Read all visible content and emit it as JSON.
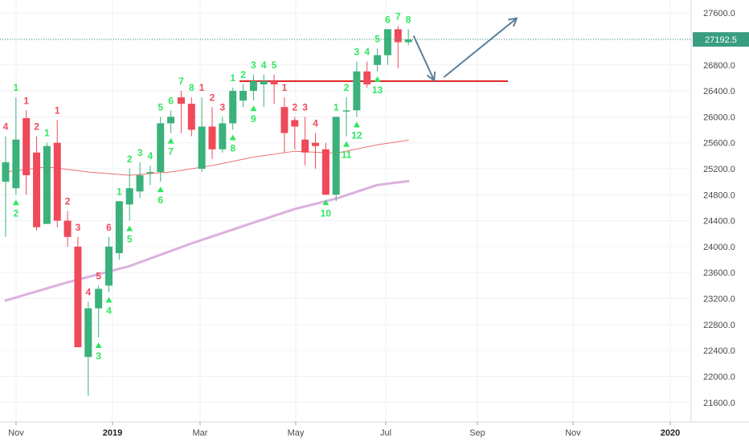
{
  "chart_data": {
    "type": "candlestick",
    "interval": "weekly",
    "title": "",
    "ylim": [
      21300,
      27800
    ],
    "y_ticks": [
      21600,
      22000,
      22400,
      22800,
      23200,
      23600,
      24000,
      24400,
      24800,
      25200,
      25600,
      26000,
      26400,
      26800,
      27200,
      27600
    ],
    "x_ticks": [
      {
        "label": "Nov",
        "bold": false
      },
      {
        "label": "2019",
        "bold": true
      },
      {
        "label": "Mar",
        "bold": false
      },
      {
        "label": "May",
        "bold": false
      },
      {
        "label": "Jul",
        "bold": false
      },
      {
        "label": "Sep",
        "bold": false
      },
      {
        "label": "Nov",
        "bold": false
      },
      {
        "label": "2020",
        "bold": true
      }
    ],
    "last_price": "27192.5",
    "candles": [
      {
        "o": 25000,
        "h": 25700,
        "l": 24150,
        "c": 25300
      },
      {
        "o": 24900,
        "h": 26300,
        "l": 24800,
        "c": 25650
      },
      {
        "o": 25980,
        "h": 26100,
        "l": 24800,
        "c": 25100
      },
      {
        "o": 25450,
        "h": 25700,
        "l": 24250,
        "c": 24300
      },
      {
        "o": 24350,
        "h": 25600,
        "l": 24350,
        "c": 25550
      },
      {
        "o": 25600,
        "h": 25950,
        "l": 24300,
        "c": 24400
      },
      {
        "o": 24400,
        "h": 24550,
        "l": 24000,
        "c": 24150
      },
      {
        "o": 24000,
        "h": 24150,
        "l": 22450,
        "c": 22450
      },
      {
        "o": 22300,
        "h": 23150,
        "l": 21700,
        "c": 23050
      },
      {
        "o": 23050,
        "h": 23400,
        "l": 22600,
        "c": 23350
      },
      {
        "o": 23400,
        "h": 24150,
        "l": 23300,
        "c": 24000
      },
      {
        "o": 23900,
        "h": 24700,
        "l": 23800,
        "c": 24700
      },
      {
        "o": 24650,
        "h": 25200,
        "l": 24400,
        "c": 24900
      },
      {
        "o": 24850,
        "h": 25300,
        "l": 24750,
        "c": 25100
      },
      {
        "o": 25130,
        "h": 25250,
        "l": 24950,
        "c": 25150
      },
      {
        "o": 25150,
        "h": 26000,
        "l": 25000,
        "c": 25900
      },
      {
        "o": 25900,
        "h": 26100,
        "l": 25750,
        "c": 26000
      },
      {
        "o": 26300,
        "h": 26400,
        "l": 25750,
        "c": 26200
      },
      {
        "o": 26200,
        "h": 26300,
        "l": 25700,
        "c": 25800
      },
      {
        "o": 25200,
        "h": 26300,
        "l": 25150,
        "c": 25850
      },
      {
        "o": 25850,
        "h": 26150,
        "l": 25350,
        "c": 25500
      },
      {
        "o": 25500,
        "h": 26000,
        "l": 25450,
        "c": 25900
      },
      {
        "o": 25900,
        "h": 26450,
        "l": 25800,
        "c": 26400
      },
      {
        "o": 26250,
        "h": 26500,
        "l": 26150,
        "c": 26400
      },
      {
        "o": 26400,
        "h": 26650,
        "l": 26250,
        "c": 26550
      },
      {
        "o": 26500,
        "h": 26650,
        "l": 26150,
        "c": 26550
      },
      {
        "o": 26550,
        "h": 26650,
        "l": 26200,
        "c": 26500
      },
      {
        "o": 26150,
        "h": 26300,
        "l": 25450,
        "c": 25750
      },
      {
        "o": 25950,
        "h": 26000,
        "l": 25500,
        "c": 25850
      },
      {
        "o": 25650,
        "h": 26000,
        "l": 25250,
        "c": 25450
      },
      {
        "o": 25600,
        "h": 25750,
        "l": 25200,
        "c": 25550
      },
      {
        "o": 25500,
        "h": 25600,
        "l": 24800,
        "c": 24800
      },
      {
        "o": 24800,
        "h": 26000,
        "l": 24700,
        "c": 26000
      },
      {
        "o": 26100,
        "h": 26300,
        "l": 25700,
        "c": 26100
      },
      {
        "o": 26100,
        "h": 26850,
        "l": 26000,
        "c": 26700
      },
      {
        "o": 26700,
        "h": 26850,
        "l": 26450,
        "c": 26500
      },
      {
        "o": 26800,
        "h": 27050,
        "l": 26700,
        "c": 26950
      },
      {
        "o": 26950,
        "h": 27350,
        "l": 26800,
        "c": 27350
      },
      {
        "o": 27350,
        "h": 27400,
        "l": 26750,
        "c": 27150
      },
      {
        "o": 27150,
        "h": 27350,
        "l": 27100,
        "c": 27192
      }
    ],
    "series": [
      {
        "kind": "ma",
        "points": [
          [
            0,
            25150
          ],
          [
            4,
            25230
          ],
          [
            8,
            25150
          ],
          [
            12,
            25100
          ],
          [
            16,
            25150
          ],
          [
            20,
            25250
          ],
          [
            24,
            25380
          ],
          [
            28,
            25470
          ],
          [
            32,
            25440
          ],
          [
            36,
            25570
          ],
          [
            39,
            25640
          ]
        ]
      },
      {
        "kind": "ma",
        "points": [
          [
            0,
            23170
          ],
          [
            6,
            23450
          ],
          [
            12,
            23700
          ],
          [
            18,
            24050
          ],
          [
            24,
            24370
          ],
          [
            28,
            24580
          ],
          [
            32,
            24740
          ],
          [
            36,
            24950
          ],
          [
            39,
            25010
          ]
        ]
      }
    ],
    "count_labels": [
      {
        "text": "4",
        "i": 0,
        "pos": "above",
        "color": "red"
      },
      {
        "text": "2",
        "i": 1,
        "pos": "below",
        "color": "green"
      },
      {
        "text": "1",
        "i": 1,
        "pos": "above",
        "color": "green"
      },
      {
        "text": "1",
        "i": 2,
        "pos": "above",
        "color": "red"
      },
      {
        "text": "2",
        "i": 3,
        "pos": "above",
        "color": "red"
      },
      {
        "text": "1",
        "i": 4,
        "pos": "above",
        "color": "green"
      },
      {
        "text": "1",
        "i": 5,
        "pos": "above",
        "color": "red"
      },
      {
        "text": "2",
        "i": 6,
        "pos": "above",
        "color": "red"
      },
      {
        "text": "3",
        "i": 7,
        "pos": "above",
        "color": "red"
      },
      {
        "text": "4",
        "i": 8,
        "pos": "above",
        "color": "red"
      },
      {
        "text": "3",
        "i": 9,
        "pos": "below",
        "color": "green"
      },
      {
        "text": "5",
        "i": 9,
        "pos": "above",
        "color": "red"
      },
      {
        "text": "4",
        "i": 10,
        "pos": "below",
        "color": "green"
      },
      {
        "text": "6",
        "i": 10,
        "pos": "above",
        "color": "red"
      },
      {
        "text": "1",
        "i": 11,
        "pos": "above",
        "color": "green"
      },
      {
        "text": "2",
        "i": 12,
        "pos": "above",
        "color": "green"
      },
      {
        "text": "5",
        "i": 12,
        "pos": "below",
        "color": "green"
      },
      {
        "text": "3",
        "i": 13,
        "pos": "above",
        "color": "green"
      },
      {
        "text": "4",
        "i": 14,
        "pos": "above",
        "color": "green"
      },
      {
        "text": "6",
        "i": 15,
        "pos": "below",
        "color": "green"
      },
      {
        "text": "5",
        "i": 15,
        "pos": "above",
        "color": "green"
      },
      {
        "text": "6",
        "i": 16,
        "pos": "above",
        "color": "green"
      },
      {
        "text": "7",
        "i": 16,
        "pos": "below",
        "color": "green"
      },
      {
        "text": "7",
        "i": 17,
        "pos": "above",
        "color": "green"
      },
      {
        "text": "8",
        "i": 18,
        "pos": "above",
        "color": "green"
      },
      {
        "text": "1",
        "i": 19,
        "pos": "above",
        "color": "red"
      },
      {
        "text": "2",
        "i": 20,
        "pos": "above",
        "color": "red"
      },
      {
        "text": "3",
        "i": 21,
        "pos": "above",
        "color": "red"
      },
      {
        "text": "8",
        "i": 22,
        "pos": "below",
        "color": "green"
      },
      {
        "text": "1",
        "i": 22,
        "pos": "above",
        "color": "green"
      },
      {
        "text": "2",
        "i": 23,
        "pos": "above",
        "color": "green"
      },
      {
        "text": "9",
        "i": 24,
        "pos": "below",
        "color": "green"
      },
      {
        "text": "3",
        "i": 24,
        "pos": "above",
        "color": "green"
      },
      {
        "text": "4",
        "i": 25,
        "pos": "above",
        "color": "green"
      },
      {
        "text": "5",
        "i": 26,
        "pos": "above",
        "color": "green"
      },
      {
        "text": "1",
        "i": 27,
        "pos": "above",
        "color": "red"
      },
      {
        "text": "2",
        "i": 28,
        "pos": "above",
        "color": "red"
      },
      {
        "text": "3",
        "i": 29,
        "pos": "above",
        "color": "red"
      },
      {
        "text": "4",
        "i": 30,
        "pos": "above",
        "color": "red"
      },
      {
        "text": "10",
        "i": 31,
        "pos": "below",
        "color": "green"
      },
      {
        "text": "1",
        "i": 32,
        "pos": "above",
        "color": "green"
      },
      {
        "text": "11",
        "i": 33,
        "pos": "below",
        "color": "green"
      },
      {
        "text": "2",
        "i": 33,
        "pos": "above",
        "color": "green"
      },
      {
        "text": "12",
        "i": 34,
        "pos": "below",
        "color": "green"
      },
      {
        "text": "3",
        "i": 34,
        "pos": "above",
        "color": "green"
      },
      {
        "text": "4",
        "i": 35,
        "pos": "above",
        "color": "green"
      },
      {
        "text": "13",
        "i": 36,
        "pos": "below",
        "color": "green"
      },
      {
        "text": "5",
        "i": 36,
        "pos": "above",
        "color": "green"
      },
      {
        "text": "6",
        "i": 37,
        "pos": "above",
        "color": "green"
      },
      {
        "text": "7",
        "i": 38,
        "pos": "above",
        "color": "green"
      },
      {
        "text": "8",
        "i": 39,
        "pos": "above",
        "color": "green"
      }
    ],
    "resistance_level": 26550,
    "projection_path": [
      {
        "i": 39.5,
        "y": 27250
      },
      {
        "i": 41.5,
        "y": 26560
      },
      {
        "i": 49.5,
        "y": 27520
      }
    ],
    "colors": {
      "up": "#3bb17c",
      "down": "#ef4a5a",
      "count_green": "#2ee860",
      "count_red": "#ef4a5a",
      "ma_short": "#f07070",
      "ma_long": "#dcb0e0",
      "resistance": "#e02626",
      "arrow": "#5b7f99",
      "last_price_badge": "#3a9d80",
      "grid": "#eef0f3",
      "axis_text": "#4a4a4a"
    }
  }
}
